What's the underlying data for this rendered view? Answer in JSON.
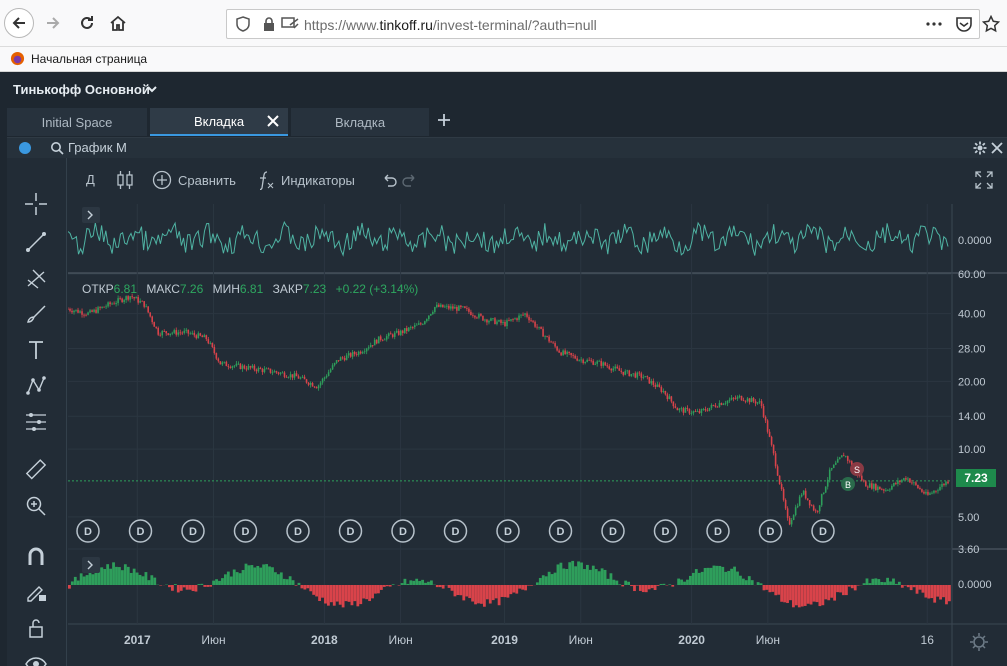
{
  "browser": {
    "url_prefix": "https://www.",
    "url_domain": "tinkoff.ru",
    "url_path": "/invest-terminal/?auth=null",
    "bookmark_label": "Начальная страница"
  },
  "app": {
    "account_name": "Тинькофф Основной",
    "tabs": [
      {
        "label": "Initial Space",
        "active": false
      },
      {
        "label": "Вкладка",
        "active": true
      },
      {
        "label": "Вкладка",
        "active": false
      }
    ]
  },
  "widget": {
    "title": "График M",
    "toolbar": {
      "interval": "Д",
      "compare": "Сравнить",
      "indicators": "Индикаторы"
    }
  },
  "chart_data": {
    "type": "line",
    "ohlc_label": {
      "open_label": "ОТКР",
      "open": "6.81",
      "high_label": "МАКС",
      "high": "7.26",
      "low_label": "МИН",
      "low": "6.81",
      "close_label": "ЗАКР",
      "close": "7.23",
      "change": "+0.22 (+3.14%)"
    },
    "y_ticks": [
      "60.00",
      "40.00",
      "28.00",
      "20.00",
      "14.00",
      "10.00",
      "5.00",
      "3.60"
    ],
    "y_scale": "log",
    "last_price": "7.23",
    "x_ticks": [
      "2017",
      "Июн",
      "2018",
      "Июн",
      "2019",
      "Июн",
      "2020",
      "Июн",
      "16"
    ],
    "top_indicator_value": "0.0000",
    "bottom_indicator_value": "0.0000",
    "dividend_marker": "D",
    "dividend_count": 15,
    "trade_markers": [
      "S",
      "B"
    ],
    "price_series": [
      {
        "t": 0.0,
        "v": 42
      },
      {
        "t": 0.03,
        "v": 40
      },
      {
        "t": 0.06,
        "v": 44
      },
      {
        "t": 0.09,
        "v": 48
      },
      {
        "t": 0.11,
        "v": 44
      },
      {
        "t": 0.13,
        "v": 33
      },
      {
        "t": 0.17,
        "v": 33
      },
      {
        "t": 0.2,
        "v": 31
      },
      {
        "t": 0.22,
        "v": 24
      },
      {
        "t": 0.26,
        "v": 23
      },
      {
        "t": 0.3,
        "v": 22
      },
      {
        "t": 0.33,
        "v": 21
      },
      {
        "t": 0.36,
        "v": 19
      },
      {
        "t": 0.39,
        "v": 25
      },
      {
        "t": 0.42,
        "v": 27
      },
      {
        "t": 0.45,
        "v": 31
      },
      {
        "t": 0.48,
        "v": 33
      },
      {
        "t": 0.51,
        "v": 36
      },
      {
        "t": 0.53,
        "v": 43
      },
      {
        "t": 0.57,
        "v": 42
      },
      {
        "t": 0.6,
        "v": 38
      },
      {
        "t": 0.63,
        "v": 36
      },
      {
        "t": 0.66,
        "v": 40
      },
      {
        "t": 0.68,
        "v": 34
      },
      {
        "t": 0.71,
        "v": 27
      },
      {
        "t": 0.74,
        "v": 25
      },
      {
        "t": 0.77,
        "v": 24
      },
      {
        "t": 0.8,
        "v": 22
      },
      {
        "t": 0.83,
        "v": 21
      },
      {
        "t": 0.86,
        "v": 18
      },
      {
        "t": 0.88,
        "v": 15
      },
      {
        "t": 0.91,
        "v": 14.5
      },
      {
        "t": 0.94,
        "v": 16
      },
      {
        "t": 0.97,
        "v": 17
      },
      {
        "t": 1.0,
        "v": 16
      },
      {
        "t": 1.02,
        "v": 9
      },
      {
        "t": 1.04,
        "v": 4.6
      },
      {
        "t": 1.06,
        "v": 6.5
      },
      {
        "t": 1.08,
        "v": 5.2
      },
      {
        "t": 1.1,
        "v": 8
      },
      {
        "t": 1.12,
        "v": 9.5
      },
      {
        "t": 1.15,
        "v": 7
      },
      {
        "t": 1.18,
        "v": 6.6
      },
      {
        "t": 1.21,
        "v": 7.5
      },
      {
        "t": 1.24,
        "v": 6.2
      },
      {
        "t": 1.27,
        "v": 7.23
      }
    ],
    "colors": {
      "up": "#2e9e5b",
      "down": "#d9434a",
      "oscillator": "#4fb3a3",
      "accent": "#3a98e0",
      "last_price_bg": "#1e8a4c"
    }
  }
}
